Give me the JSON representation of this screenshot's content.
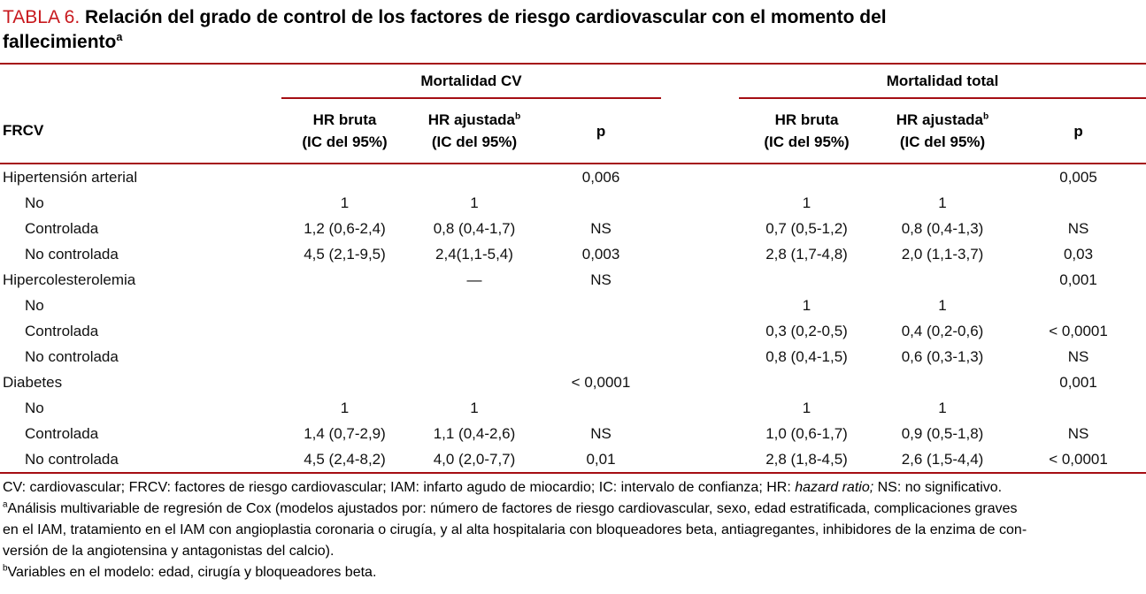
{
  "title": {
    "label": "TABLA 6.",
    "line1": "Relación del grado de control de los factores de riesgo cardiovascular con el momento del",
    "line2": "fallecimiento",
    "sup": "a"
  },
  "header": {
    "frcv": "FRCV",
    "group_cv": "Mortalidad CV",
    "group_total": "Mortalidad total",
    "hr_bruta": "HR bruta",
    "hr_ajustada": "HR ajustada",
    "hr_ajustada_sup": "b",
    "ic": "(IC del 95%)",
    "p": "p"
  },
  "table": {
    "rows": [
      {
        "label": "Hipertensión arterial",
        "indent": false,
        "cells": [
          "",
          "",
          "0,006",
          "",
          "",
          "0,005"
        ]
      },
      {
        "label": "No",
        "indent": true,
        "cells": [
          "1",
          "1",
          "",
          "1",
          "1",
          ""
        ]
      },
      {
        "label": "Controlada",
        "indent": true,
        "cells": [
          "1,2 (0,6-2,4)",
          "0,8 (0,4-1,7)",
          "NS",
          "0,7 (0,5-1,2)",
          "0,8 (0,4-1,3)",
          "NS"
        ]
      },
      {
        "label": "No controlada",
        "indent": true,
        "cells": [
          "4,5 (2,1-9,5)",
          "2,4(1,1-5,4)",
          "0,003",
          "2,8 (1,7-4,8)",
          "2,0 (1,1-3,7)",
          "0,03"
        ]
      },
      {
        "label": "Hipercolesterolemia",
        "indent": false,
        "cells": [
          "",
          "—",
          "NS",
          "",
          "",
          "0,001"
        ]
      },
      {
        "label": "No",
        "indent": true,
        "cells": [
          "",
          "",
          "",
          "1",
          "1",
          ""
        ]
      },
      {
        "label": "Controlada",
        "indent": true,
        "cells": [
          "",
          "",
          "",
          "0,3 (0,2-0,5)",
          "0,4 (0,2-0,6)",
          "< 0,0001"
        ]
      },
      {
        "label": "No controlada",
        "indent": true,
        "cells": [
          "",
          "",
          "",
          "0,8 (0,4-1,5)",
          "0,6 (0,3-1,3)",
          "NS"
        ]
      },
      {
        "label": "Diabetes",
        "indent": false,
        "cells": [
          "",
          "",
          "< 0,0001",
          "",
          "",
          "0,001"
        ]
      },
      {
        "label": "No",
        "indent": true,
        "cells": [
          "1",
          "1",
          "",
          "1",
          "1",
          ""
        ]
      },
      {
        "label": "Controlada",
        "indent": true,
        "cells": [
          "1,4 (0,7-2,9)",
          "1,1 (0,4-2,6)",
          "NS",
          "1,0 (0,6-1,7)",
          "0,9 (0,5-1,8)",
          "NS"
        ]
      },
      {
        "label": "No controlada",
        "indent": true,
        "cells": [
          "4,5 (2,4-8,2)",
          "4,0 (2,0-7,7)",
          "0,01",
          "2,8 (1,8-4,5)",
          "2,6 (1,5-4,4)",
          "< 0,0001"
        ]
      }
    ]
  },
  "footnotes": {
    "abbrev_prefix": "CV: cardiovascular; FRCV: factores de riesgo cardiovascular; IAM: infarto agudo de miocardio; IC: intervalo de confianza; HR: ",
    "abbrev_italic": "hazard ratio;",
    "abbrev_suffix": " NS: no significativo.",
    "a_marker": "a",
    "a_lines": [
      "Análisis multivariable de regresión de Cox (modelos ajustados por: número de factores de riesgo cardiovascular, sexo, edad estratificada, complicaciones graves",
      "en el IAM, tratamiento en el IAM con angioplastia coronaria o cirugía, y al alta hospitalaria con bloqueadores beta, antiagregantes, inhibidores de la enzima de con-",
      "versión de la angiotensina y antagonistas del calcio)."
    ],
    "b_marker": "b",
    "b_text": "Variables en el modelo: edad, cirugía y bloqueadores beta."
  },
  "colors": {
    "rule_red": "#A50E13",
    "title_red": "#C8191E"
  }
}
